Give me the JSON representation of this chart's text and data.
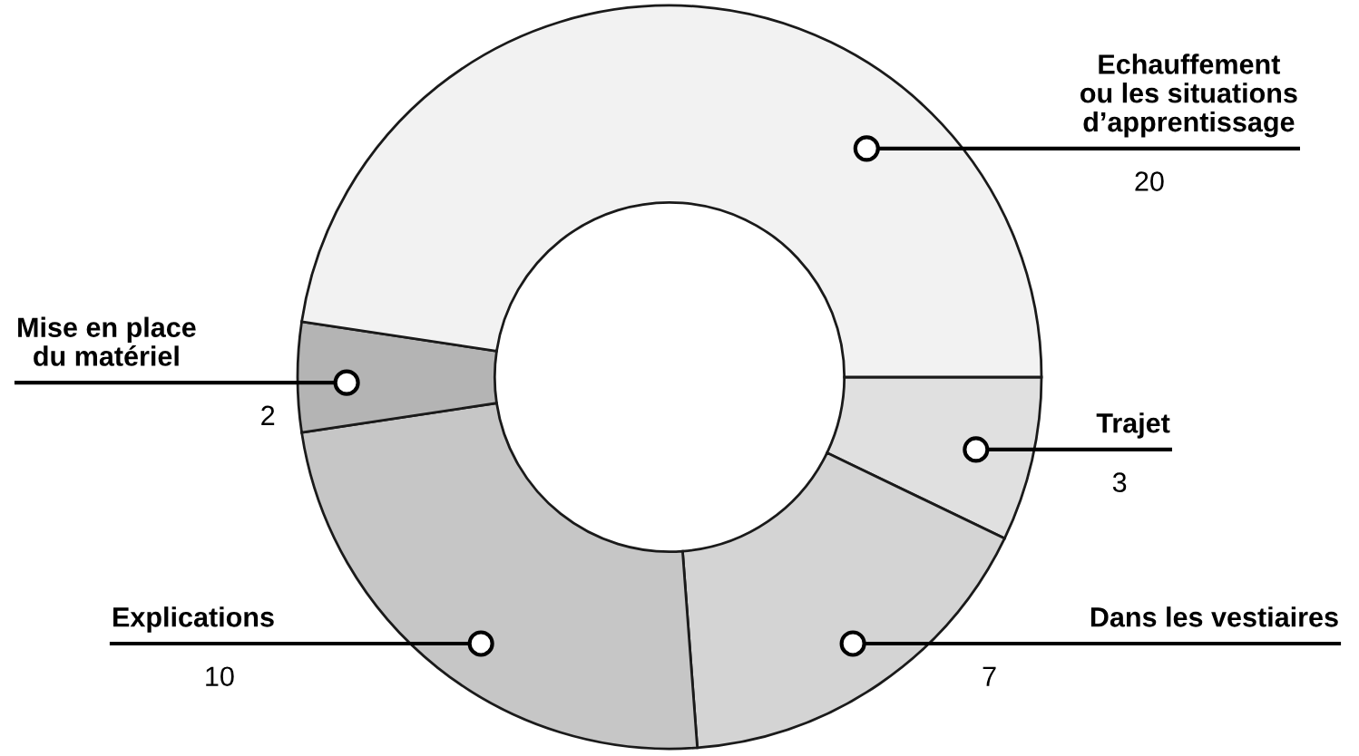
{
  "chart_data": {
    "type": "donut",
    "categories": [
      "Trajet",
      "Dans les vestiaires",
      "Explications",
      "Mise en place\ndu matériel",
      "Echauffement\nou les situations\nd’apprentissage"
    ],
    "values": [
      3,
      7,
      10,
      2,
      20
    ],
    "colors": [
      "#e0e0e0",
      "#d4d4d4",
      "#c6c6c6",
      "#b4b4b4",
      "#f2f2f2"
    ],
    "data_labels": true,
    "legend": false
  }
}
